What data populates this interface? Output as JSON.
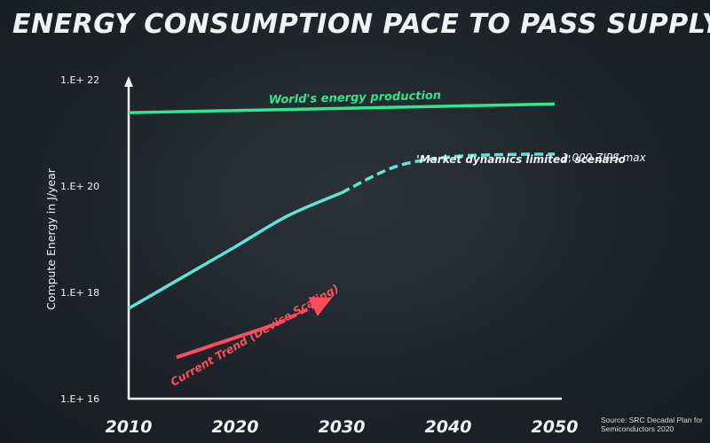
{
  "title": "ENERGY CONSUMPTION PACE TO PASS SUPPLY",
  "source": {
    "line1": "Source: SRC Decadal Plan for",
    "line2": "Semiconductors 2020"
  },
  "colors": {
    "production": "#2ee88f",
    "market": "#5fe3d6",
    "trend": "#ff4d5e",
    "axis": "#f0f0f0",
    "text": "#f2f2f2"
  },
  "chart_data": {
    "type": "line",
    "title": "ENERGY CONSUMPTION PACE TO PASS SUPPLY",
    "xlabel": "",
    "ylabel": "Compute Energy in J/year",
    "y_scale": "log",
    "xlim": [
      2010,
      2050
    ],
    "ylim": [
      1e+16,
      1e+22
    ],
    "x_ticks": [
      2010,
      2020,
      2030,
      2040,
      2050
    ],
    "x_tick_labels": [
      "2010",
      "2020",
      "2030",
      "2040",
      "2050"
    ],
    "y_ticks": [
      1e+16,
      1e+18,
      1e+20,
      1e+22
    ],
    "y_tick_labels": [
      "1.E+ 16",
      "1.E+ 18",
      "1.E+ 20",
      "1.E+ 22"
    ],
    "series": [
      {
        "name": "World's energy production",
        "style": "solid",
        "x": [
          2010,
          2050
        ],
        "y": [
          2.4e+21,
          3.5e+21
        ]
      },
      {
        "name": "'Market dynamics limited' scenario",
        "end_label": "1,000 ZIPS max",
        "style": "solid-then-dashed",
        "dash_from_x": 2030,
        "x": [
          2010,
          2015,
          2020,
          2025,
          2030,
          2035,
          2040,
          2045,
          2050
        ],
        "y": [
          5e+17,
          1.9e+18,
          7.2e+18,
          2.8e+19,
          7.5e+19,
          2.3e+20,
          3.5e+20,
          3.9e+20,
          4e+20
        ]
      },
      {
        "name": "Current Trend (Device Scaling)",
        "style": "solid-then-dashed",
        "dash_from_x": 2024,
        "arrow": true,
        "x": [
          2014.5,
          2024,
          2028.5
        ],
        "y": [
          6e+16,
          2.6e+17,
          7e+17
        ]
      }
    ]
  }
}
